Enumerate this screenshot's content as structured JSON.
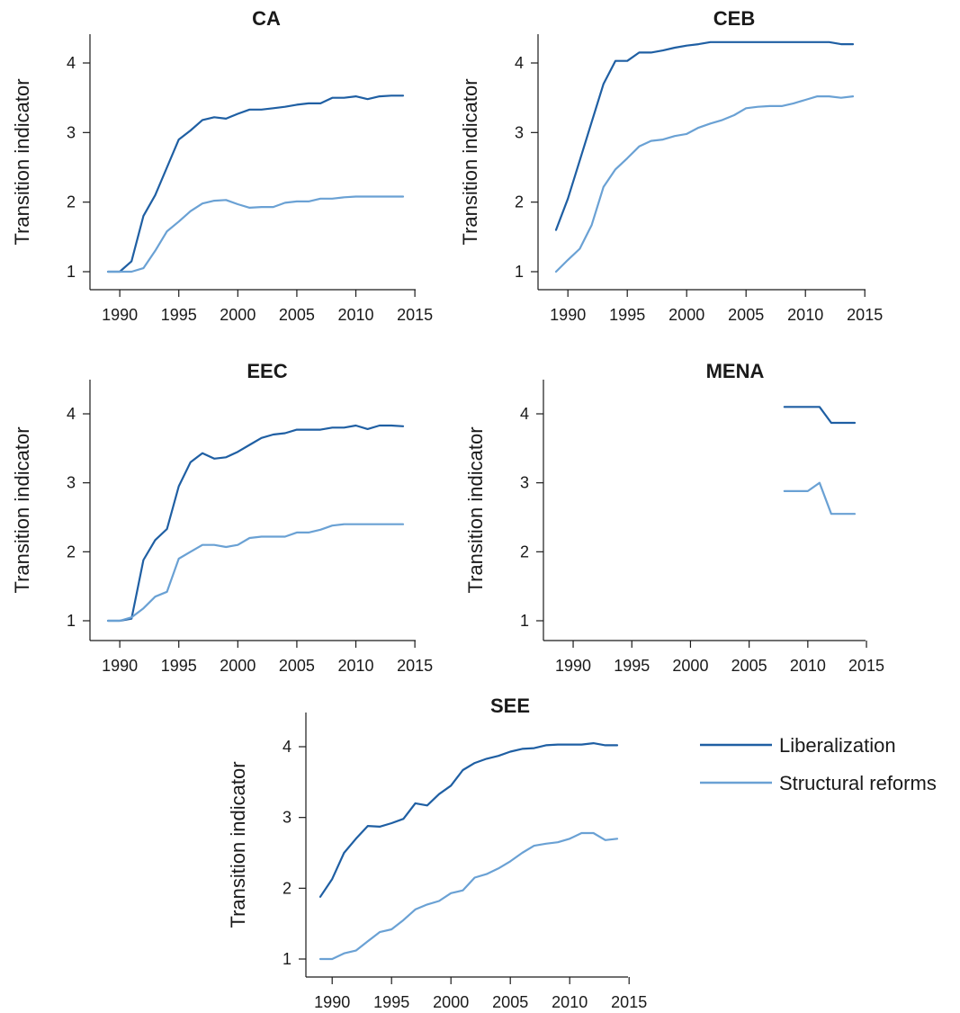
{
  "chart_data": [
    {
      "type": "line",
      "title": "CA",
      "xlabel": "",
      "ylabel": "Transition indicator",
      "xlim": [
        1988,
        2016
      ],
      "ylim": [
        0.8,
        4.5
      ],
      "xticks": [
        "1990",
        "1995",
        "2000",
        "2005",
        "2010",
        "2015"
      ],
      "yticks": [
        "1",
        "2",
        "3",
        "4"
      ],
      "series": [
        {
          "name": "Liberalization",
          "color": "#1f5fa3",
          "x": [
            1989,
            1990,
            1991,
            1992,
            1993,
            1994,
            1995,
            1996,
            1997,
            1998,
            1999,
            2000,
            2001,
            2002,
            2003,
            2004,
            2005,
            2006,
            2007,
            2008,
            2009,
            2010,
            2011,
            2012,
            2013,
            2014
          ],
          "y": [
            1.0,
            1.0,
            1.15,
            1.8,
            2.1,
            2.5,
            2.9,
            3.03,
            3.18,
            3.22,
            3.2,
            3.27,
            3.33,
            3.33,
            3.35,
            3.37,
            3.4,
            3.42,
            3.42,
            3.5,
            3.5,
            3.52,
            3.48,
            3.52,
            3.53,
            3.53
          ]
        },
        {
          "name": "Structural reforms",
          "color": "#6aa1d4",
          "x": [
            1989,
            1990,
            1991,
            1992,
            1993,
            1994,
            1995,
            1996,
            1997,
            1998,
            1999,
            2000,
            2001,
            2002,
            2003,
            2004,
            2005,
            2006,
            2007,
            2008,
            2009,
            2010,
            2011,
            2012,
            2013,
            2014
          ],
          "y": [
            1.0,
            1.0,
            1.0,
            1.05,
            1.3,
            1.58,
            1.72,
            1.87,
            1.98,
            2.02,
            2.03,
            1.97,
            1.92,
            1.93,
            1.93,
            1.99,
            2.01,
            2.01,
            2.05,
            2.05,
            2.07,
            2.08,
            2.08,
            2.08,
            2.08,
            2.08
          ]
        }
      ]
    },
    {
      "type": "line",
      "title": "CEB",
      "xlabel": "",
      "ylabel": "Transition indicator",
      "xlim": [
        1988,
        2016
      ],
      "ylim": [
        0.8,
        4.5
      ],
      "xticks": [
        "1990",
        "1995",
        "2000",
        "2005",
        "2010",
        "2015"
      ],
      "yticks": [
        "1",
        "2",
        "3",
        "4"
      ],
      "series": [
        {
          "name": "Liberalization",
          "color": "#1f5fa3",
          "x": [
            1989,
            1990,
            1991,
            1992,
            1993,
            1994,
            1995,
            1996,
            1997,
            1998,
            1999,
            2000,
            2001,
            2002,
            2003,
            2004,
            2005,
            2006,
            2007,
            2008,
            2009,
            2010,
            2011,
            2012,
            2013,
            2014
          ],
          "y": [
            1.6,
            2.05,
            2.6,
            3.15,
            3.7,
            4.03,
            4.03,
            4.15,
            4.15,
            4.18,
            4.22,
            4.25,
            4.27,
            4.3,
            4.3,
            4.3,
            4.3,
            4.3,
            4.3,
            4.3,
            4.3,
            4.3,
            4.3,
            4.3,
            4.27,
            4.27
          ]
        },
        {
          "name": "Structural reforms",
          "color": "#6aa1d4",
          "x": [
            1989,
            1990,
            1991,
            1992,
            1993,
            1994,
            1995,
            1996,
            1997,
            1998,
            1999,
            2000,
            2001,
            2002,
            2003,
            2004,
            2005,
            2006,
            2007,
            2008,
            2009,
            2010,
            2011,
            2012,
            2013,
            2014
          ],
          "y": [
            1.0,
            1.17,
            1.33,
            1.67,
            2.22,
            2.47,
            2.63,
            2.8,
            2.88,
            2.9,
            2.95,
            2.98,
            3.07,
            3.13,
            3.18,
            3.25,
            3.35,
            3.37,
            3.38,
            3.38,
            3.42,
            3.47,
            3.52,
            3.52,
            3.5,
            3.52
          ]
        }
      ]
    },
    {
      "type": "line",
      "title": "EEC",
      "xlabel": "",
      "ylabel": "Transition indicator",
      "xlim": [
        1988,
        2016
      ],
      "ylim": [
        0.8,
        4.5
      ],
      "xticks": [
        "1990",
        "1995",
        "2000",
        "2005",
        "2010",
        "2015"
      ],
      "yticks": [
        "1",
        "2",
        "3",
        "4"
      ],
      "series": [
        {
          "name": "Liberalization",
          "color": "#1f5fa3",
          "x": [
            1989,
            1990,
            1991,
            1992,
            1993,
            1994,
            1995,
            1996,
            1997,
            1998,
            1999,
            2000,
            2001,
            2002,
            2003,
            2004,
            2005,
            2006,
            2007,
            2008,
            2009,
            2010,
            2011,
            2012,
            2013,
            2014
          ],
          "y": [
            1.0,
            1.0,
            1.03,
            1.88,
            2.17,
            2.33,
            2.95,
            3.3,
            3.43,
            3.35,
            3.37,
            3.45,
            3.55,
            3.65,
            3.7,
            3.72,
            3.77,
            3.77,
            3.77,
            3.8,
            3.8,
            3.83,
            3.78,
            3.83,
            3.83,
            3.82
          ]
        },
        {
          "name": "Structural reforms",
          "color": "#6aa1d4",
          "x": [
            1989,
            1990,
            1991,
            1992,
            1993,
            1994,
            1995,
            1996,
            1997,
            1998,
            1999,
            2000,
            2001,
            2002,
            2003,
            2004,
            2005,
            2006,
            2007,
            2008,
            2009,
            2010,
            2011,
            2012,
            2013,
            2014
          ],
          "y": [
            1.0,
            1.0,
            1.05,
            1.18,
            1.35,
            1.42,
            1.9,
            2.0,
            2.1,
            2.1,
            2.07,
            2.1,
            2.2,
            2.22,
            2.22,
            2.22,
            2.28,
            2.28,
            2.32,
            2.38,
            2.4,
            2.4,
            2.4,
            2.4,
            2.4,
            2.4
          ]
        }
      ]
    },
    {
      "type": "line",
      "title": "MENA",
      "xlabel": "",
      "ylabel": "Transition indicator",
      "xlim": [
        1988,
        2016
      ],
      "ylim": [
        0.8,
        4.5
      ],
      "xticks": [
        "1990",
        "1995",
        "2000",
        "2005",
        "2010",
        "2015"
      ],
      "yticks": [
        "1",
        "2",
        "3",
        "4"
      ],
      "series": [
        {
          "name": "Liberalization",
          "color": "#1f5fa3",
          "x": [
            2008,
            2009,
            2010,
            2011,
            2012,
            2013,
            2014
          ],
          "y": [
            4.1,
            4.1,
            4.1,
            4.1,
            3.87,
            3.87,
            3.87
          ]
        },
        {
          "name": "Structural reforms",
          "color": "#6aa1d4",
          "x": [
            2008,
            2009,
            2010,
            2011,
            2012,
            2013,
            2014
          ],
          "y": [
            2.88,
            2.88,
            2.88,
            3.0,
            2.55,
            2.55,
            2.55
          ]
        }
      ]
    },
    {
      "type": "line",
      "title": "SEE",
      "xlabel": "",
      "ylabel": "Transition indicator",
      "xlim": [
        1988,
        2016
      ],
      "ylim": [
        0.8,
        4.5
      ],
      "xticks": [
        "1990",
        "1995",
        "2000",
        "2005",
        "2010",
        "2015"
      ],
      "yticks": [
        "1",
        "2",
        "3",
        "4"
      ],
      "series": [
        {
          "name": "Liberalization",
          "color": "#1f5fa3",
          "x": [
            1989,
            1990,
            1991,
            1992,
            1993,
            1994,
            1995,
            1996,
            1997,
            1998,
            1999,
            2000,
            2001,
            2002,
            2003,
            2004,
            2005,
            2006,
            2007,
            2008,
            2009,
            2010,
            2011,
            2012,
            2013,
            2014
          ],
          "y": [
            1.88,
            2.13,
            2.5,
            2.7,
            2.88,
            2.87,
            2.92,
            2.98,
            3.2,
            3.17,
            3.33,
            3.45,
            3.67,
            3.77,
            3.83,
            3.87,
            3.93,
            3.97,
            3.98,
            4.02,
            4.03,
            4.03,
            4.03,
            4.05,
            4.02,
            4.02
          ]
        },
        {
          "name": "Structural reforms",
          "color": "#6aa1d4",
          "x": [
            1989,
            1990,
            1991,
            1992,
            1993,
            1994,
            1995,
            1996,
            1997,
            1998,
            1999,
            2000,
            2001,
            2002,
            2003,
            2004,
            2005,
            2006,
            2007,
            2008,
            2009,
            2010,
            2011,
            2012,
            2013,
            2014
          ],
          "y": [
            1.0,
            1.0,
            1.08,
            1.12,
            1.25,
            1.38,
            1.42,
            1.55,
            1.7,
            1.77,
            1.82,
            1.93,
            1.97,
            2.15,
            2.2,
            2.28,
            2.38,
            2.5,
            2.6,
            2.63,
            2.65,
            2.7,
            2.78,
            2.78,
            2.68,
            2.7
          ]
        }
      ]
    }
  ],
  "legend": {
    "position": "right of SEE panel",
    "items": [
      {
        "label": "Liberalization",
        "color": "#1f5fa3"
      },
      {
        "label": "Structural reforms",
        "color": "#6aa1d4"
      }
    ]
  }
}
